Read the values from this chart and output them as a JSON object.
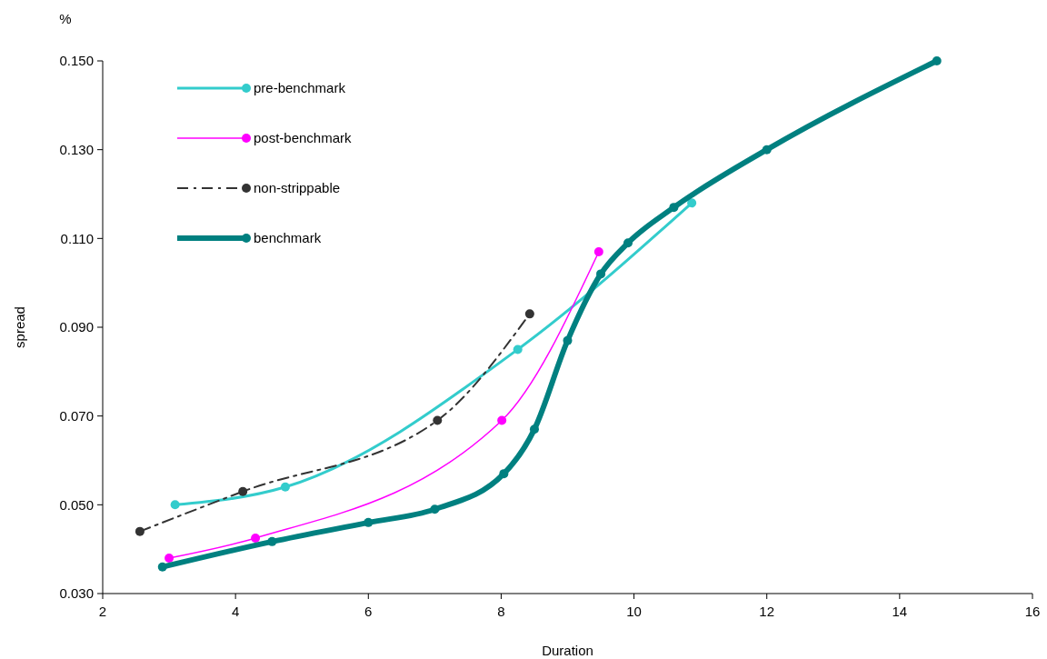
{
  "chart_data": {
    "type": "line",
    "xlabel": "Duration",
    "ylabel": "spread",
    "annotations": [
      "%"
    ],
    "xlim": [
      2,
      16
    ],
    "xticks": [
      2,
      4,
      6,
      8,
      10,
      12,
      14,
      16
    ],
    "ylim": [
      0.03,
      0.15
    ],
    "yticks": [
      {
        "value": 0.03,
        "label": "0.030"
      },
      {
        "value": 0.05,
        "label": "0.050"
      },
      {
        "value": 0.07,
        "label": "0.070"
      },
      {
        "value": 0.09,
        "label": "0.090"
      },
      {
        "value": 0.11,
        "label": "0.110"
      },
      {
        "value": 0.13,
        "label": "0.130"
      },
      {
        "value": 0.15,
        "label": "0.150"
      }
    ],
    "grid": false,
    "legend": "top left",
    "marker": "circle",
    "series": [
      {
        "name": "pre-benchmark",
        "color": "#33cccc",
        "line_style": "solid",
        "x": [
          3.09,
          4.75,
          8.25,
          10.87
        ],
        "values": [
          0.05,
          0.054,
          0.085,
          0.118
        ]
      },
      {
        "name": "post-benchmark",
        "color": "#ff00ff",
        "line_style": "solid",
        "x": [
          3.0,
          4.3,
          8.01,
          9.47
        ],
        "values": [
          0.038,
          0.0425,
          0.069,
          0.107
        ]
      },
      {
        "name": "non-strippable",
        "color": "#333333",
        "line_style": "dashed",
        "x": [
          2.56,
          4.11,
          7.04,
          8.43
        ],
        "values": [
          0.044,
          0.053,
          0.069,
          0.093
        ]
      },
      {
        "name": "benchmark",
        "color": "#008080",
        "line_style": "solid",
        "x": [
          2.9,
          4.55,
          6.0,
          7.0,
          8.04,
          8.5,
          9.0,
          9.5,
          9.91,
          10.6,
          12.0,
          14.56
        ],
        "values": [
          0.036,
          0.0417,
          0.046,
          0.049,
          0.057,
          0.067,
          0.087,
          0.102,
          0.109,
          0.117,
          0.13,
          0.15
        ]
      }
    ]
  }
}
